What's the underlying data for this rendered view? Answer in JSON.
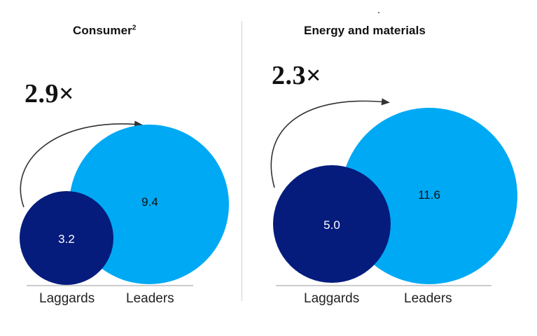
{
  "colors": {
    "leaders": "#00A9F4",
    "laggards": "#051C7D",
    "arrow": "#333333",
    "baseline": "#9a9a9a"
  },
  "chart_data": [
    {
      "type": "bubble",
      "title": "Consumer",
      "title_superscript": "2",
      "multiplier": "2.9×",
      "categories": [
        "Laggards",
        "Leaders"
      ],
      "values": [
        3.2,
        9.4
      ],
      "value_labels": [
        "3.2",
        "9.4"
      ]
    },
    {
      "type": "bubble",
      "title": "Energy and materials",
      "title_superscript": "",
      "multiplier": "2.3×",
      "categories": [
        "Laggards",
        "Leaders"
      ],
      "values": [
        5.0,
        11.6
      ],
      "value_labels": [
        "5.0",
        "11.6"
      ]
    }
  ]
}
